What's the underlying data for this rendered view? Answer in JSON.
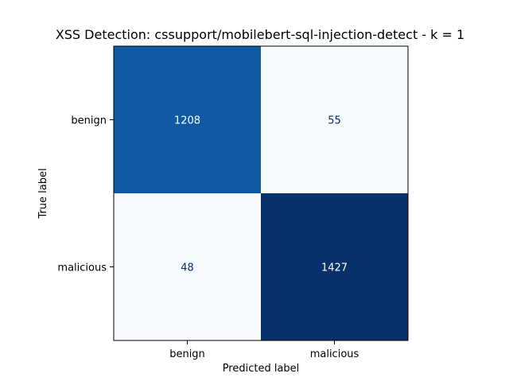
{
  "chart_data": {
    "type": "heatmap",
    "title": "XSS Detection: cssupport/mobilebert-sql-injection-detect - k = 1",
    "xlabel": "Predicted label",
    "ylabel": "True label",
    "x_categories": [
      "benign",
      "malicious"
    ],
    "y_categories": [
      "benign",
      "malicious"
    ],
    "values": [
      [
        1208,
        55
      ],
      [
        48,
        1427
      ]
    ],
    "colormap": "Blues",
    "colors": {
      "cell_low": "#f7fbff",
      "cell_high": "#08306b",
      "text_on_light": "#08306b",
      "text_on_dark": "#ffffff"
    }
  }
}
